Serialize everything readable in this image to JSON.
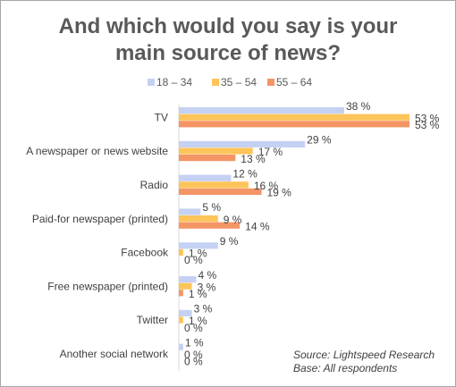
{
  "chart_data": {
    "type": "bar",
    "orientation": "horizontal",
    "title_lines": [
      "And which would you say is your",
      "main source of news?"
    ],
    "categories": [
      "TV",
      "A newspaper or news website",
      "Radio",
      "Paid-for newspaper (printed)",
      "Facebook",
      "Free newspaper (printed)",
      "Twitter",
      "Another social network"
    ],
    "series": [
      {
        "name": "18 – 34",
        "color": "#c5d1f3",
        "values": [
          38,
          29,
          12,
          5,
          9,
          4,
          3,
          1
        ],
        "labels": [
          "38 %",
          "29 %",
          "12 %",
          "5 %",
          "9 %",
          "4 %",
          "3 %",
          "1 %"
        ]
      },
      {
        "name": "35 – 54",
        "color": "#fdc45a",
        "values": [
          53,
          17,
          16,
          9,
          1,
          3,
          1,
          0
        ],
        "labels": [
          "53 %",
          "17 %",
          "16 %",
          "9 %",
          "1 %",
          "3 %",
          "1 %",
          "0 %"
        ]
      },
      {
        "name": "55 – 64",
        "color": "#f49565",
        "values": [
          53,
          13,
          19,
          14,
          0,
          1,
          0,
          0
        ],
        "labels": [
          "53 %",
          "13 %",
          "19 %",
          "14 %",
          "0 %",
          "1 %",
          "0 %",
          "0 %"
        ]
      }
    ],
    "legend_position": "top",
    "xlim": [
      0,
      53
    ],
    "grid": false,
    "notes": [
      "Source: Lightspeed Research",
      "Base: All respondents"
    ]
  }
}
